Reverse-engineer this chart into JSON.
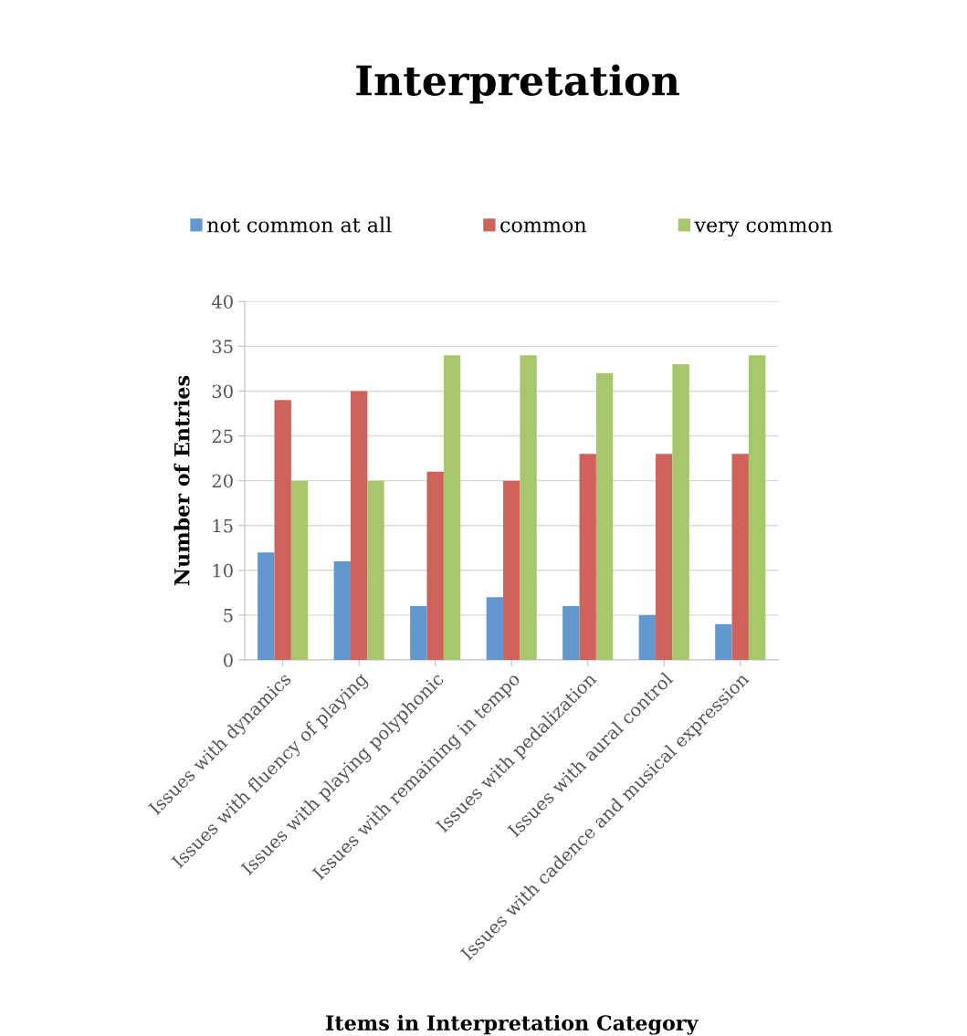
{
  "chart_data": {
    "type": "bar",
    "title": "Interpretation",
    "xlabel": "Items in Interpretation Category",
    "ylabel": "Number of Entries",
    "categories": [
      "Issues with dynamics",
      "Issues with fluency of playing",
      "Issues with playing polyphonic",
      "Issues with remaining in tempo",
      "Issues with pedalization",
      "Issues with aural control",
      "Issues with cadence and musical expression"
    ],
    "series": [
      {
        "name": "not common at all",
        "color": "#6397cf",
        "values": [
          12,
          11,
          6,
          7,
          6,
          5,
          4
        ]
      },
      {
        "name": "common",
        "color": "#cf635c",
        "values": [
          29,
          30,
          21,
          20,
          23,
          23,
          23
        ]
      },
      {
        "name": "very common",
        "color": "#a8c66b",
        "values": [
          20,
          20,
          34,
          34,
          32,
          33,
          34
        ]
      }
    ],
    "ylim": [
      0,
      40
    ],
    "yticks": [
      0,
      5,
      10,
      15,
      20,
      25,
      30,
      35,
      40
    ],
    "grid": "y",
    "legend": "top"
  }
}
